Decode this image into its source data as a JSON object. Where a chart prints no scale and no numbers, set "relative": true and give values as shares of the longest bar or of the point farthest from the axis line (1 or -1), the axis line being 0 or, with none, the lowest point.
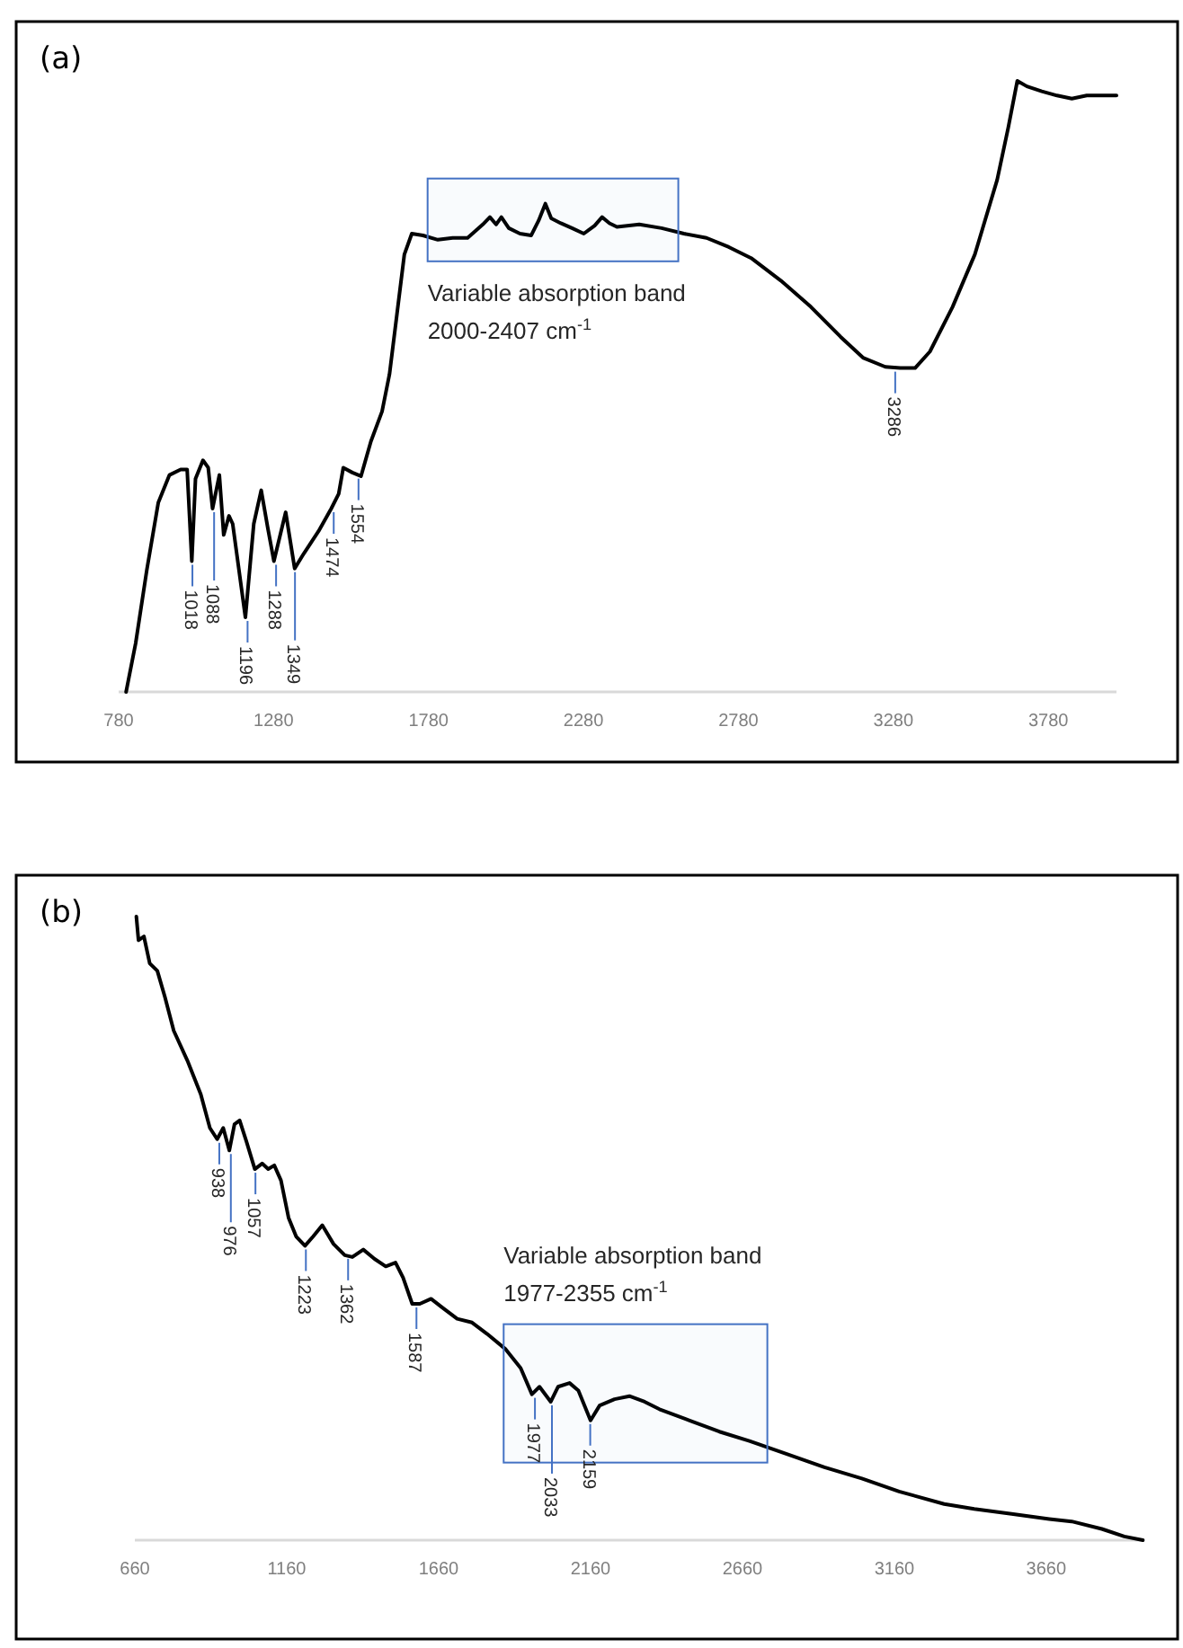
{
  "chart_data": [
    {
      "type": "line",
      "title": "(a)",
      "relative": true,
      "tick_labels": "x",
      "xlim": [
        780,
        4000
      ],
      "xticks": [
        780,
        1280,
        1780,
        2280,
        2780,
        3280,
        3780
      ],
      "series": [
        {
          "color": "#000000",
          "x": [
            804,
            835,
            871,
            908,
            944,
            980,
            1001,
            1016,
            1028,
            1052,
            1069,
            1083,
            1105,
            1119,
            1136,
            1148,
            1189,
            1216,
            1240,
            1261,
            1281,
            1319,
            1348,
            1377,
            1425,
            1466,
            1490,
            1505,
            1534,
            1562,
            1594,
            1630,
            1654,
            1678,
            1702,
            1726,
            1762,
            1810,
            1858,
            1906,
            1955,
            1978,
            1998,
            2015,
            2039,
            2075,
            2111,
            2135,
            2157,
            2176,
            2207,
            2243,
            2281,
            2316,
            2340,
            2364,
            2388,
            2460,
            2532,
            2604,
            2677,
            2749,
            2821,
            2917,
            3014,
            3110,
            3182,
            3254,
            3302,
            3350,
            3398,
            3471,
            3543,
            3615,
            3651,
            3680,
            3711,
            3759,
            3808,
            3856,
            3904,
            4000
          ],
          "values": [
            0,
            0.08,
            0.2,
            0.31,
            0.355,
            0.364,
            0.364,
            0.214,
            0.349,
            0.379,
            0.367,
            0.3,
            0.355,
            0.257,
            0.288,
            0.275,
            0.122,
            0.275,
            0.33,
            0.269,
            0.214,
            0.294,
            0.202,
            0.226,
            0.263,
            0.3,
            0.324,
            0.367,
            0.359,
            0.353,
            0.41,
            0.459,
            0.52,
            0.618,
            0.716,
            0.75,
            0.747,
            0.74,
            0.743,
            0.743,
            0.765,
            0.777,
            0.765,
            0.777,
            0.759,
            0.75,
            0.747,
            0.771,
            0.799,
            0.775,
            0.767,
            0.759,
            0.75,
            0.763,
            0.777,
            0.767,
            0.761,
            0.765,
            0.759,
            0.75,
            0.743,
            0.728,
            0.71,
            0.673,
            0.63,
            0.581,
            0.547,
            0.532,
            0.53,
            0.53,
            0.557,
            0.63,
            0.716,
            0.838,
            0.924,
            1,
            0.991,
            0.983,
            0.976,
            0.971,
            0.976,
            0.976
          ]
        }
      ],
      "bands": [
        {
          "axis": "x",
          "from": 1777,
          "to": 2586,
          "label": "Variable absorption band 2000-2407 cm$^{-1}$",
          "color": "#4472c4"
        }
      ],
      "annotations": [
        {
          "text": "1018",
          "x": 1018,
          "y": 0.214
        },
        {
          "text": "1088",
          "x": 1088,
          "y": 0.3
        },
        {
          "text": "1196",
          "x": 1196,
          "y": 0.122
        },
        {
          "text": "1288",
          "x": 1288,
          "y": 0.214
        },
        {
          "text": "1349",
          "x": 1349,
          "y": 0.202
        },
        {
          "text": "1474",
          "x": 1474,
          "y": 0.3
        },
        {
          "text": "1554",
          "x": 1554,
          "y": 0.355
        },
        {
          "text": "3286",
          "x": 3286,
          "y": 0.53
        }
      ]
    },
    {
      "type": "line",
      "title": "(b)",
      "relative": true,
      "tick_labels": "x",
      "xlim": [
        660,
        3980
      ],
      "xticks": [
        660,
        1160,
        1660,
        2160,
        2660,
        3160,
        3660
      ],
      "series": [
        {
          "color": "#000000",
          "x": [
            665,
            672,
            690,
            709,
            734,
            759,
            788,
            833,
            877,
            907,
            931,
            951,
            971,
            988,
            1005,
            1025,
            1055,
            1079,
            1099,
            1119,
            1141,
            1166,
            1191,
            1220,
            1247,
            1277,
            1314,
            1351,
            1376,
            1412,
            1449,
            1486,
            1518,
            1543,
            1573,
            1598,
            1635,
            1672,
            1721,
            1770,
            1819,
            1881,
            1930,
            1967,
            1992,
            2029,
            2053,
            2091,
            2120,
            2160,
            2190,
            2239,
            2288,
            2338,
            2387,
            2486,
            2584,
            2683,
            2806,
            2930,
            3053,
            3176,
            3324,
            3423,
            3546,
            3670,
            3744,
            3843,
            3917,
            3978
          ],
          "values": [
            1,
            0.962,
            0.968,
            0.925,
            0.913,
            0.871,
            0.817,
            0.769,
            0.715,
            0.661,
            0.643,
            0.661,
            0.625,
            0.667,
            0.673,
            0.643,
            0.595,
            0.604,
            0.595,
            0.601,
            0.577,
            0.517,
            0.487,
            0.472,
            0.487,
            0.505,
            0.475,
            0.457,
            0.454,
            0.466,
            0.451,
            0.439,
            0.445,
            0.421,
            0.379,
            0.379,
            0.387,
            0.373,
            0.355,
            0.349,
            0.331,
            0.306,
            0.276,
            0.234,
            0.246,
            0.222,
            0.246,
            0.252,
            0.24,
            0.192,
            0.216,
            0.226,
            0.231,
            0.222,
            0.21,
            0.192,
            0.174,
            0.159,
            0.138,
            0.117,
            0.099,
            0.078,
            0.058,
            0.05,
            0.042,
            0.034,
            0.03,
            0.018,
            0.006,
            0
          ]
        }
      ],
      "bands": [
        {
          "axis": "x",
          "from": 1874,
          "to": 2742,
          "label": "Variable absorption band 1977-2355 cm$^{-1}$",
          "color": "#4472c4"
        }
      ],
      "annotations": [
        {
          "text": "938",
          "x": 938,
          "y": 0.643
        },
        {
          "text": "976",
          "x": 976,
          "y": 0.625
        },
        {
          "text": "1057",
          "x": 1057,
          "y": 0.595
        },
        {
          "text": "1223",
          "x": 1223,
          "y": 0.472
        },
        {
          "text": "1362",
          "x": 1362,
          "y": 0.457
        },
        {
          "text": "1587",
          "x": 1587,
          "y": 0.379
        },
        {
          "text": "1977",
          "x": 1977,
          "y": 0.234
        },
        {
          "text": "2033",
          "x": 2033,
          "y": 0.222
        },
        {
          "text": "2159",
          "x": 2159,
          "y": 0.192
        }
      ]
    }
  ]
}
